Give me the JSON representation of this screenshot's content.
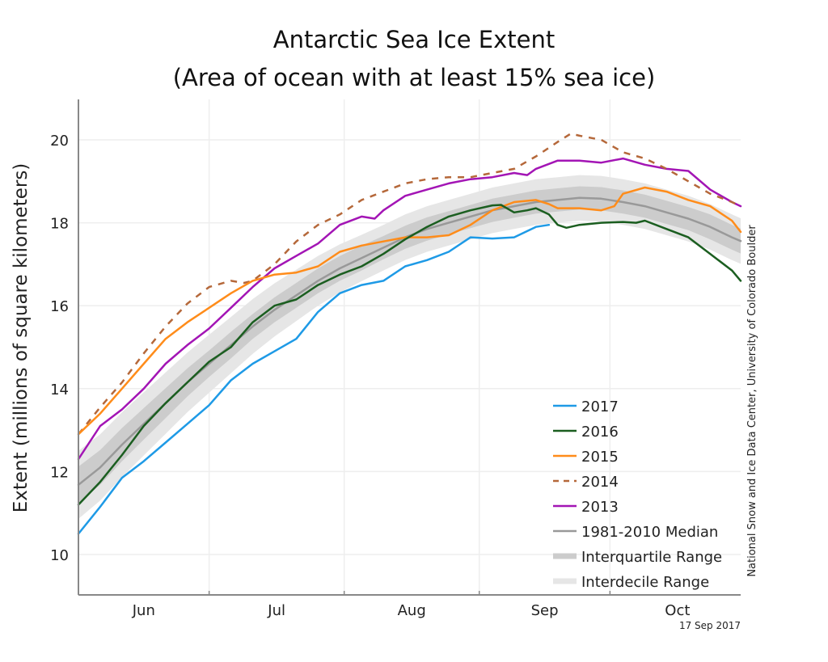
{
  "chart_data": {
    "type": "line",
    "title": [
      "Antarctic Sea Ice Extent",
      "(Area of ocean with at least 15% sea ice)"
    ],
    "xlabel": "",
    "ylabel": "Extent (millions of square kilometers)",
    "ylim": [
      9,
      21
    ],
    "yticks": [
      10,
      12,
      14,
      16,
      18,
      20
    ],
    "x_unit": "days since Jun 1",
    "xlim": [
      0,
      152
    ],
    "month_ticks": [
      30,
      61,
      92,
      122
    ],
    "month_labels": [
      {
        "label": "Jun",
        "center_day": 15
      },
      {
        "label": "Jul",
        "center_day": 45.5
      },
      {
        "label": "Aug",
        "center_day": 76.5
      },
      {
        "label": "Sep",
        "center_day": 107
      },
      {
        "label": "Oct",
        "center_day": 137.5
      }
    ],
    "grid": true,
    "legend_position": "bottom-right",
    "credit": "National Snow and Ice Data Center, University of Colorado Boulder",
    "date_stamp": "17 Sep 2017",
    "median": {
      "name": "1981-2010 Median",
      "color": "#999999",
      "x": [
        0,
        5,
        10,
        15,
        20,
        25,
        30,
        35,
        40,
        45,
        50,
        55,
        60,
        65,
        70,
        75,
        80,
        85,
        90,
        95,
        100,
        105,
        110,
        115,
        120,
        125,
        130,
        135,
        140,
        145,
        150,
        152
      ],
      "values": [
        11.68,
        12.1,
        12.65,
        13.15,
        13.65,
        14.15,
        14.6,
        15.05,
        15.5,
        15.9,
        16.25,
        16.6,
        16.9,
        17.15,
        17.4,
        17.65,
        17.85,
        18.0,
        18.15,
        18.3,
        18.4,
        18.5,
        18.55,
        18.6,
        18.58,
        18.5,
        18.4,
        18.25,
        18.1,
        17.9,
        17.65,
        17.56
      ]
    },
    "interquartile": {
      "name": "Interquartile Range",
      "color": "#cccccc",
      "half_width": [
        0.44,
        0.42,
        0.4,
        0.38,
        0.36,
        0.34,
        0.32,
        0.32,
        0.3,
        0.3,
        0.3,
        0.3,
        0.3,
        0.3,
        0.28,
        0.28,
        0.28,
        0.28,
        0.28,
        0.28,
        0.28,
        0.28,
        0.28,
        0.28,
        0.28,
        0.28,
        0.28,
        0.28,
        0.28,
        0.3,
        0.3,
        0.3
      ]
    },
    "interdecile": {
      "name": "Interdecile Range",
      "color": "#e6e6e6",
      "half_width": [
        0.82,
        0.8,
        0.78,
        0.76,
        0.74,
        0.72,
        0.7,
        0.68,
        0.66,
        0.64,
        0.62,
        0.6,
        0.58,
        0.56,
        0.55,
        0.55,
        0.55,
        0.55,
        0.55,
        0.55,
        0.55,
        0.55,
        0.55,
        0.55,
        0.55,
        0.55,
        0.55,
        0.55,
        0.55,
        0.55,
        0.55,
        0.55
      ]
    },
    "series": [
      {
        "name": "2017",
        "color": "#1e9ae6",
        "dash": false,
        "x": [
          0,
          5,
          10,
          15,
          20,
          25,
          30,
          35,
          40,
          45,
          50,
          55,
          60,
          65,
          70,
          75,
          80,
          85,
          90,
          95,
          100,
          105,
          108
        ],
        "values": [
          10.5,
          11.15,
          11.85,
          12.25,
          12.7,
          13.15,
          13.6,
          14.2,
          14.6,
          14.9,
          15.2,
          15.85,
          16.3,
          16.5,
          16.6,
          16.95,
          17.1,
          17.3,
          17.65,
          17.62,
          17.65,
          17.9,
          17.95
        ]
      },
      {
        "name": "2016",
        "color": "#1b5e20",
        "dash": false,
        "x": [
          0,
          5,
          10,
          15,
          20,
          25,
          30,
          35,
          40,
          45,
          50,
          55,
          60,
          65,
          70,
          75,
          80,
          85,
          90,
          95,
          97,
          100,
          103,
          105,
          108,
          110,
          112,
          115,
          120,
          125,
          128,
          130,
          135,
          140,
          145,
          150,
          152
        ],
        "values": [
          11.2,
          11.75,
          12.4,
          13.1,
          13.65,
          14.15,
          14.65,
          15.0,
          15.6,
          16.0,
          16.15,
          16.5,
          16.75,
          16.95,
          17.25,
          17.6,
          17.9,
          18.15,
          18.3,
          18.42,
          18.43,
          18.25,
          18.3,
          18.35,
          18.2,
          17.95,
          17.88,
          17.95,
          18.0,
          18.02,
          18.0,
          18.05,
          17.85,
          17.65,
          17.25,
          16.85,
          16.6
        ]
      },
      {
        "name": "2015",
        "color": "#ff8c1a",
        "dash": false,
        "x": [
          0,
          5,
          10,
          15,
          20,
          25,
          30,
          35,
          40,
          45,
          50,
          55,
          60,
          65,
          70,
          75,
          80,
          85,
          90,
          95,
          100,
          105,
          108,
          110,
          115,
          120,
          123,
          125,
          130,
          135,
          140,
          145,
          150,
          152
        ],
        "values": [
          12.9,
          13.4,
          14.0,
          14.6,
          15.2,
          15.6,
          15.95,
          16.3,
          16.6,
          16.75,
          16.8,
          16.95,
          17.3,
          17.45,
          17.55,
          17.65,
          17.65,
          17.7,
          17.95,
          18.3,
          18.5,
          18.55,
          18.45,
          18.35,
          18.35,
          18.3,
          18.4,
          18.7,
          18.85,
          18.75,
          18.55,
          18.4,
          18.05,
          17.78
        ]
      },
      {
        "name": "2014",
        "color": "#b5683a",
        "dash": true,
        "x": [
          0,
          5,
          10,
          15,
          20,
          25,
          30,
          35,
          38,
          40,
          45,
          50,
          55,
          60,
          65,
          70,
          75,
          80,
          85,
          90,
          95,
          100,
          105,
          110,
          113,
          115,
          120,
          125,
          130,
          135,
          140,
          145,
          150,
          152
        ],
        "values": [
          12.9,
          13.55,
          14.15,
          14.85,
          15.5,
          16.05,
          16.45,
          16.6,
          16.55,
          16.6,
          17.0,
          17.55,
          17.95,
          18.2,
          18.55,
          18.75,
          18.95,
          19.05,
          19.1,
          19.1,
          19.2,
          19.3,
          19.6,
          19.95,
          20.15,
          20.1,
          20.0,
          19.7,
          19.55,
          19.3,
          19.0,
          18.7,
          18.5,
          18.4
        ]
      },
      {
        "name": "2013",
        "color": "#a315b5",
        "dash": false,
        "x": [
          0,
          5,
          10,
          15,
          20,
          25,
          30,
          35,
          40,
          45,
          50,
          55,
          60,
          65,
          68,
          70,
          75,
          80,
          85,
          90,
          95,
          100,
          103,
          105,
          110,
          115,
          120,
          125,
          130,
          135,
          140,
          145,
          150,
          152
        ],
        "values": [
          12.3,
          13.1,
          13.5,
          14.0,
          14.6,
          15.05,
          15.45,
          15.95,
          16.45,
          16.9,
          17.2,
          17.5,
          17.95,
          18.15,
          18.1,
          18.3,
          18.65,
          18.8,
          18.95,
          19.05,
          19.1,
          19.2,
          19.15,
          19.3,
          19.5,
          19.5,
          19.45,
          19.55,
          19.4,
          19.3,
          19.25,
          18.8,
          18.5,
          18.4
        ]
      }
    ],
    "legend": [
      {
        "label": "2017",
        "color": "#1e9ae6",
        "kind": "line"
      },
      {
        "label": "2016",
        "color": "#1b5e20",
        "kind": "line"
      },
      {
        "label": "2015",
        "color": "#ff8c1a",
        "kind": "line"
      },
      {
        "label": "2014",
        "color": "#b5683a",
        "kind": "dash"
      },
      {
        "label": "2013",
        "color": "#a315b5",
        "kind": "line"
      },
      {
        "label": "1981-2010 Median",
        "color": "#999999",
        "kind": "line"
      },
      {
        "label": "Interquartile Range",
        "color": "#cccccc",
        "kind": "band"
      },
      {
        "label": "Interdecile Range",
        "color": "#e6e6e6",
        "kind": "band"
      }
    ]
  }
}
